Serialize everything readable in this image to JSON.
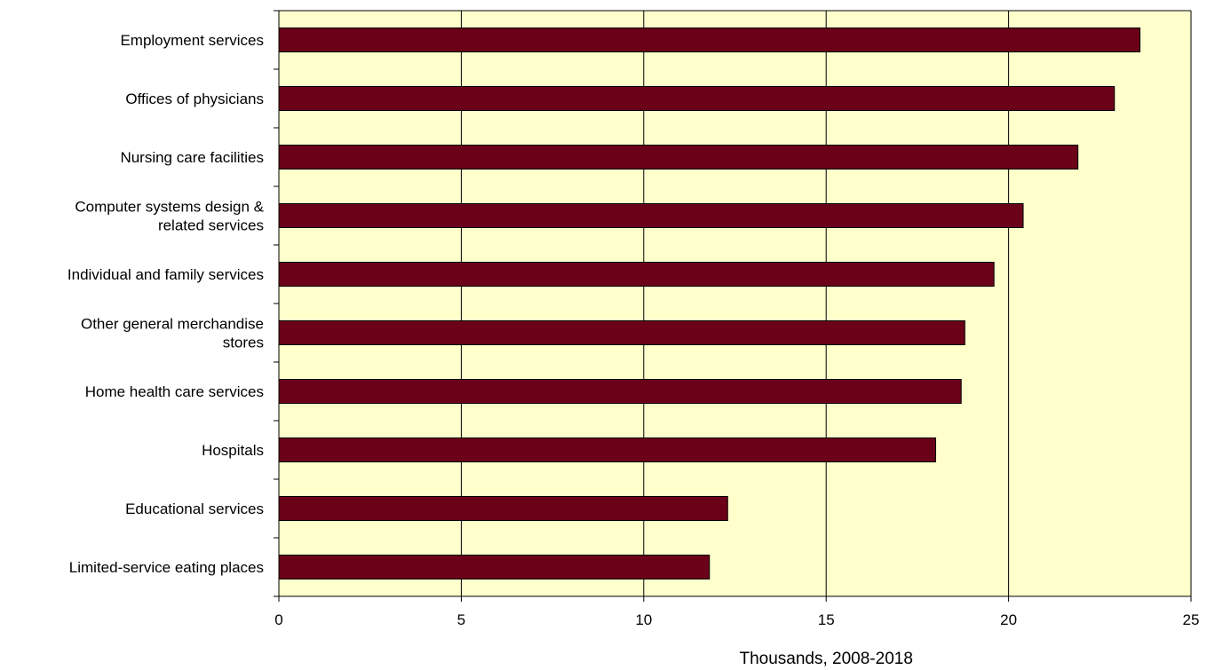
{
  "chart_data": {
    "type": "bar",
    "orientation": "horizontal",
    "title": "",
    "xlabel": "Thousands, 2008-2018",
    "ylabel": "",
    "xlim": [
      0,
      25
    ],
    "xticks": [
      0,
      5,
      10,
      15,
      20,
      25
    ],
    "grid": "vertical",
    "legend": "none",
    "categories": [
      "Employment services",
      "Offices of physicians",
      "Nursing care facilities",
      "Computer systems design & related services",
      "Individual and family services",
      "Other general merchandise stores",
      "Home health care services",
      "Hospitals",
      "Educational services",
      "Limited-service eating places"
    ],
    "category_lines": [
      [
        "Employment services"
      ],
      [
        "Offices of physicians"
      ],
      [
        "Nursing care facilities"
      ],
      [
        "Computer systems design &",
        "related services"
      ],
      [
        "Individual and family services"
      ],
      [
        "Other general merchandise",
        "stores"
      ],
      [
        "Home health care services"
      ],
      [
        "Hospitals"
      ],
      [
        "Educational services"
      ],
      [
        "Limited-service eating places"
      ]
    ],
    "values": [
      23.6,
      22.9,
      21.9,
      20.4,
      19.6,
      18.8,
      18.7,
      18.0,
      12.3,
      11.8
    ],
    "colors": {
      "bar": "#6b0019",
      "plot_background": "#ffffcc",
      "gridline": "#000000"
    }
  }
}
